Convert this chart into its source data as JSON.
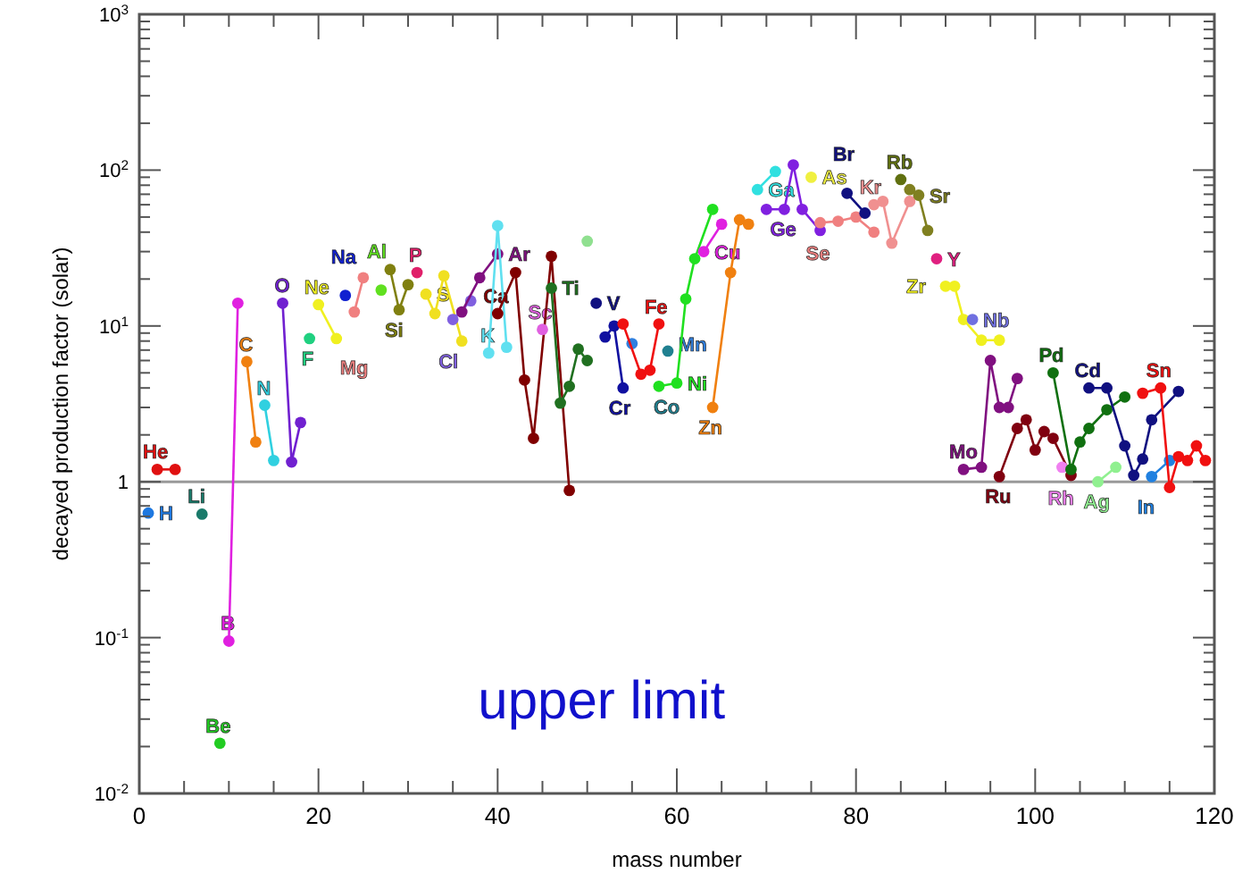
{
  "chart_data": {
    "type": "line",
    "xlabel": "mass number",
    "ylabel": "decayed production factor (solar)",
    "log": "y",
    "xlim": [
      0,
      120
    ],
    "xticks": [
      0,
      20,
      40,
      60,
      80,
      100,
      120
    ],
    "ylim": [
      0.01,
      1000
    ],
    "yticks": [
      {
        "value": 0.01,
        "label": "10$^{-2}$"
      },
      {
        "value": 0.1,
        "label": "10$^{-1}$"
      },
      1,
      {
        "value": 10,
        "label": "10$^{1}$"
      },
      {
        "value": 100,
        "label": "10$^{2}$"
      },
      {
        "value": 1000,
        "label": "10$^{3}$"
      }
    ],
    "grid": false,
    "marker": "circle",
    "line_style": "solid",
    "ref_lines": [
      {
        "axis": "y",
        "value": 1,
        "color": "#999999"
      }
    ],
    "annotations": [
      "upper limit"
    ],
    "series": [
      {
        "name": "H",
        "color": "#1e78e0",
        "x": [
          1
        ],
        "values": [
          0.63
        ]
      },
      {
        "name": "He",
        "color": "#e01010",
        "x": [
          2,
          4
        ],
        "values": [
          1.2,
          1.2
        ]
      },
      {
        "name": "Li",
        "color": "#1a7a6a",
        "x": [
          7
        ],
        "values": [
          0.62
        ]
      },
      {
        "name": "Be",
        "color": "#22cc22",
        "x": [
          9
        ],
        "values": [
          0.021
        ]
      },
      {
        "name": "B",
        "color": "#e020e0",
        "x": [
          10,
          11
        ],
        "values": [
          0.095,
          14
        ]
      },
      {
        "name": "C",
        "color": "#f08010",
        "x": [
          12,
          13
        ],
        "values": [
          5.9,
          1.8
        ]
      },
      {
        "name": "N",
        "color": "#30d0e0",
        "x": [
          14,
          15
        ],
        "values": [
          3.1,
          1.37
        ]
      },
      {
        "name": "O",
        "color": "#7020d0",
        "x": [
          16,
          17,
          18
        ],
        "values": [
          14,
          1.34,
          2.4
        ]
      },
      {
        "name": "F",
        "color": "#20d080",
        "x": [
          19
        ],
        "values": [
          8.3
        ]
      },
      {
        "name": "Ne",
        "color": "#f0f020",
        "x": [
          20,
          22
        ],
        "values": [
          13.7,
          8.3
        ]
      },
      {
        "name": "Na",
        "color": "#1020d0",
        "x": [
          23
        ],
        "values": [
          15.7
        ]
      },
      {
        "name": "Mg",
        "color": "#f08080",
        "x": [
          24,
          25
        ],
        "values": [
          12.3,
          20.4
        ]
      },
      {
        "name": "Al",
        "color": "#60e020",
        "x": [
          27
        ],
        "values": [
          17
        ]
      },
      {
        "name": "Si",
        "color": "#808010",
        "x": [
          28,
          29,
          30
        ],
        "values": [
          23,
          12.7,
          18.4
        ]
      },
      {
        "name": "P",
        "color": "#e0206a",
        "x": [
          31
        ],
        "values": [
          22
        ]
      },
      {
        "name": "S",
        "color": "#f0e020",
        "x": [
          32,
          33,
          34,
          36
        ],
        "values": [
          16,
          12,
          21,
          8
        ]
      },
      {
        "name": "Cl",
        "color": "#8060e0",
        "x": [
          35,
          37
        ],
        "values": [
          11,
          14.5
        ]
      },
      {
        "name": "Ar",
        "color": "#801080",
        "x": [
          36,
          38,
          40
        ],
        "values": [
          12.3,
          20.4,
          29
        ]
      },
      {
        "name": "K",
        "color": "#60e0f0",
        "x": [
          39,
          40,
          41
        ],
        "values": [
          6.7,
          44,
          7.3
        ]
      },
      {
        "name": "Ca",
        "color": "#800000",
        "x": [
          40,
          42,
          43,
          44,
          46,
          48
        ],
        "values": [
          12,
          22,
          4.5,
          1.9,
          28,
          0.88
        ]
      },
      {
        "name": "Sc",
        "color": "#e060e0",
        "x": [
          45
        ],
        "values": [
          9.5
        ]
      },
      {
        "name": "Ti",
        "color": "#207020",
        "x": [
          46,
          47,
          48,
          49,
          50
        ],
        "values": [
          17.5,
          3.2,
          4.1,
          7.1,
          6
        ]
      },
      {
        "name": "V",
        "color": "#101080",
        "x": [
          51
        ],
        "values": [
          14
        ]
      },
      {
        "color": "#90e090",
        "x": [
          50
        ],
        "values": [
          35
        ]
      },
      {
        "name": "Cr",
        "color": "#1010a0",
        "x": [
          52,
          53,
          54
        ],
        "values": [
          8.5,
          10,
          4
        ]
      },
      {
        "name": "Mn",
        "color": "#3080e0",
        "x": [
          55
        ],
        "values": [
          7.7
        ]
      },
      {
        "name": "Fe",
        "color": "#f01010",
        "x": [
          54,
          56,
          57,
          58
        ],
        "values": [
          10.3,
          4.9,
          5.2,
          10.3
        ]
      },
      {
        "name": "Co",
        "color": "#208090",
        "x": [
          59
        ],
        "values": [
          6.9
        ]
      },
      {
        "name": "Ni",
        "color": "#20e020",
        "x": [
          58,
          60,
          61,
          62,
          64
        ],
        "values": [
          4.1,
          4.3,
          14.9,
          27,
          56
        ]
      },
      {
        "name": "Cu",
        "color": "#e020e0",
        "x": [
          63,
          65
        ],
        "values": [
          30,
          45
        ]
      },
      {
        "name": "Zn",
        "color": "#f08010",
        "x": [
          64,
          66,
          67,
          68
        ],
        "values": [
          3,
          22,
          48,
          45
        ]
      },
      {
        "name": "Ga",
        "color": "#30e0e0",
        "x": [
          69,
          71
        ],
        "values": [
          75,
          98
        ]
      },
      {
        "name": "Ge",
        "color": "#8020e0",
        "x": [
          70,
          72,
          73,
          74,
          76
        ],
        "values": [
          56,
          56,
          108,
          56,
          41
        ]
      },
      {
        "name": "As",
        "color": "#f0f040",
        "x": [
          75
        ],
        "values": [
          90
        ]
      },
      {
        "name": "Se",
        "color": "#f08080",
        "x": [
          76,
          78,
          80,
          82
        ],
        "values": [
          46,
          47,
          50,
          40
        ]
      },
      {
        "name": "Br",
        "color": "#101080",
        "x": [
          79,
          81
        ],
        "values": [
          71,
          53
        ]
      },
      {
        "name": "Kr",
        "color": "#f09090",
        "x": [
          82,
          83,
          84,
          86
        ],
        "values": [
          60,
          63,
          34,
          63
        ]
      },
      {
        "name": "Rb",
        "color": "#607010",
        "x": [
          85
        ],
        "values": [
          87
        ]
      },
      {
        "name": "Sr",
        "color": "#808020",
        "x": [
          86,
          87,
          88
        ],
        "values": [
          75,
          69,
          41
        ]
      },
      {
        "name": "Y",
        "color": "#e02080",
        "x": [
          89
        ],
        "values": [
          27
        ]
      },
      {
        "name": "Zr",
        "color": "#f0f020",
        "x": [
          90,
          91,
          92,
          94,
          96
        ],
        "values": [
          18,
          18,
          11,
          8.1,
          8.1
        ]
      },
      {
        "name": "Nb",
        "color": "#7070e0",
        "x": [
          93
        ],
        "values": [
          11
        ]
      },
      {
        "name": "Mo",
        "color": "#801080",
        "x": [
          92,
          94,
          95,
          96,
          97,
          98
        ],
        "values": [
          1.2,
          1.24,
          6,
          3,
          3,
          4.6
        ]
      },
      {
        "name": "Ru",
        "color": "#800010",
        "x": [
          96,
          98,
          99,
          100,
          101,
          102,
          104
        ],
        "values": [
          1.08,
          2.2,
          2.5,
          1.6,
          2.1,
          1.9,
          1.1
        ]
      },
      {
        "name": "Rh",
        "color": "#f080f0",
        "x": [
          103
        ],
        "values": [
          1.24
        ]
      },
      {
        "name": "Pd",
        "color": "#107010",
        "x": [
          102,
          104,
          105,
          106,
          108,
          110
        ],
        "values": [
          5,
          1.2,
          1.8,
          2.2,
          2.9,
          3.5
        ]
      },
      {
        "name": "Ag",
        "color": "#90f090",
        "x": [
          107,
          109
        ],
        "values": [
          1.0,
          1.24
        ]
      },
      {
        "name": "Cd",
        "color": "#101080",
        "x": [
          106,
          108,
          110,
          111,
          112,
          113,
          114,
          116
        ],
        "values": [
          4,
          4,
          1.7,
          1.1,
          1.4,
          2.5,
          null,
          3.8
        ]
      },
      {
        "name": "In",
        "color": "#2080e0",
        "x": [
          113,
          115
        ],
        "values": [
          1.08,
          1.37
        ]
      },
      {
        "name": "Sn",
        "color": "#f01010",
        "x": [
          112,
          114,
          115,
          116,
          117,
          118,
          119
        ],
        "values": [
          3.7,
          4,
          0.92,
          1.45,
          1.37,
          1.7,
          1.37
        ]
      }
    ]
  }
}
